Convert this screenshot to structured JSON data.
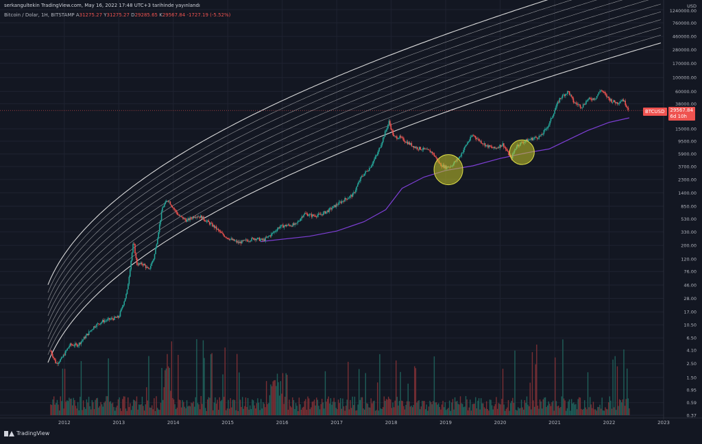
{
  "header": {
    "attribution": "serkangultekin TradingView.com, May 16, 2022 17:48 UTC+3 tarihinde yayınlandı",
    "symbol_title": "Bitcoin / Dolar, 1H, BITSTAMP",
    "ohlc": [
      {
        "key": "A",
        "value": "31275.27"
      },
      {
        "key": "Y",
        "value": "31275.27"
      },
      {
        "key": "D",
        "value": "29285.65"
      },
      {
        "key": "K",
        "value": "29567.84"
      },
      {
        "key": "",
        "value": "-1727.19 (-5.52%)"
      }
    ]
  },
  "price_badge": {
    "symbol": "BTCUSD",
    "price": "29567.84",
    "countdown": "6d 10h"
  },
  "footer": {
    "brand": "TradingView"
  },
  "colors": {
    "background": "#131722",
    "grid": "#1f2331",
    "up": "#26a69a",
    "down": "#ef5350",
    "volume_up": "#1f5f59",
    "volume_down": "#7a2f34",
    "bands": "#e6e6e6",
    "moving_average": "#7e3fd6",
    "highlight_fill": "#c9c92a",
    "axis_text": "#b2b5be"
  },
  "chart_data": {
    "type": "line",
    "title": "Bitcoin / Dolar, 1H, BITSTAMP",
    "y_scale": "log",
    "currency_label": "USD",
    "ylim": [
      0.37,
      1240000
    ],
    "xlim": [
      2011.6,
      2023.0
    ],
    "x_ticks": [
      "2012",
      "2013",
      "2014",
      "2015",
      "2016",
      "2017",
      "2018",
      "2019",
      "2020",
      "2021",
      "2022",
      "2023"
    ],
    "y_ticks": [
      "1240000.00",
      "760000.00",
      "460000.00",
      "280000.00",
      "170000.00",
      "100000.00",
      "60000.00",
      "38000.00",
      "15000.00",
      "9500.00",
      "5900.00",
      "3700.00",
      "2300.00",
      "1400.00",
      "850.00",
      "530.00",
      "330.00",
      "200.00",
      "120.00",
      "76.00",
      "46.00",
      "28.00",
      "17.00",
      "10.50",
      "6.50",
      "4.10",
      "2.50",
      "1.50",
      "0.95",
      "0.59",
      "0.37"
    ],
    "grid": true,
    "last_price": 29567.84,
    "series": [
      {
        "type": "candlestick-path",
        "x": [
          2011.75,
          2011.85,
          2011.95,
          2012.1,
          2012.25,
          2012.4,
          2012.55,
          2012.7,
          2012.85,
          2013.0,
          2013.15,
          2013.27,
          2013.33,
          2013.45,
          2013.55,
          2013.65,
          2013.8,
          2013.9,
          2014.0,
          2014.1,
          2014.25,
          2014.4,
          2014.5,
          2014.6,
          2014.75,
          2014.9,
          2015.05,
          2015.2,
          2015.35,
          2015.5,
          2015.65,
          2015.8,
          2015.95,
          2016.1,
          2016.25,
          2016.4,
          2016.55,
          2016.7,
          2016.85,
          2017.0,
          2017.15,
          2017.3,
          2017.45,
          2017.6,
          2017.75,
          2017.85,
          2017.96,
          2018.05,
          2018.15,
          2018.3,
          2018.45,
          2018.6,
          2018.75,
          2018.9,
          2019.0,
          2019.1,
          2019.25,
          2019.4,
          2019.5,
          2019.6,
          2019.75,
          2019.9,
          2020.05,
          2020.2,
          2020.3,
          2020.45,
          2020.6,
          2020.75,
          2020.9,
          2021.0,
          2021.1,
          2021.25,
          2021.35,
          2021.5,
          2021.6,
          2021.75,
          2021.85,
          2021.95,
          2022.05,
          2022.15,
          2022.25,
          2022.37
        ],
        "y": [
          4,
          2.5,
          3,
          5,
          5,
          7,
          10,
          12,
          13,
          14,
          35,
          230,
          100,
          100,
          80,
          130,
          800,
          1100,
          800,
          600,
          500,
          600,
          580,
          500,
          400,
          300,
          250,
          220,
          240,
          260,
          240,
          300,
          400,
          420,
          430,
          650,
          600,
          620,
          730,
          900,
          1100,
          1300,
          2500,
          3500,
          6000,
          10500,
          19500,
          11000,
          11000,
          9000,
          7500,
          7000,
          6300,
          4000,
          3600,
          3800,
          5200,
          9000,
          12000,
          10000,
          8000,
          7200,
          8500,
          5000,
          8000,
          9500,
          10500,
          11500,
          18000,
          30000,
          47000,
          60000,
          40000,
          34000,
          44000,
          47000,
          64000,
          50000,
          42000,
          39000,
          45000,
          29567.84
        ]
      },
      {
        "type": "moving-average",
        "x": [
          2015.6,
          2016.5,
          2017.0,
          2017.5,
          2017.9,
          2018.2,
          2018.6,
          2019.0,
          2019.5,
          2020.0,
          2020.5,
          2020.9,
          2021.2,
          2021.6,
          2022.0,
          2022.37
        ],
        "y": [
          230,
          280,
          340,
          480,
          750,
          1650,
          2500,
          3200,
          3800,
          5000,
          6200,
          7100,
          9500,
          14000,
          19000,
          22500
        ]
      }
    ],
    "annotations": [
      {
        "type": "ellipse-highlight",
        "x_center": 2019.05,
        "y_center": 3300
      },
      {
        "type": "ellipse-highlight",
        "x_center": 2020.4,
        "y_center": 6300
      }
    ]
  }
}
